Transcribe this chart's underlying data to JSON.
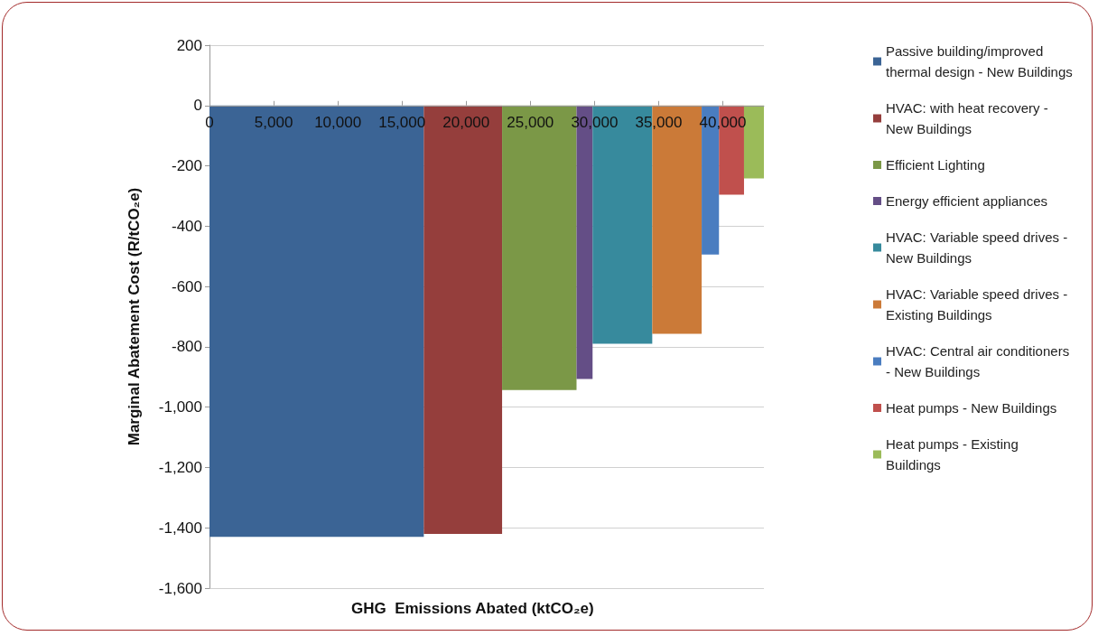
{
  "chart_data": {
    "type": "area",
    "xlabel": "GHG  Emissions Abated (ktCO₂e)",
    "ylabel": "Marginal Abatement Cost (R/tCO₂e)",
    "xlim": [
      0,
      43200
    ],
    "xticks": [
      0,
      {
        "value": 5000,
        "label": "5,000"
      },
      {
        "value": 10000,
        "label": "10,000"
      },
      {
        "value": 15000,
        "label": "15,000"
      },
      {
        "value": 20000,
        "label": "20,000"
      },
      {
        "value": 25000,
        "label": "25,000"
      },
      {
        "value": 30000,
        "label": "30,000"
      },
      {
        "value": 35000,
        "label": "35,000"
      },
      {
        "value": 40000,
        "label": "40,000"
      }
    ],
    "ylim": [
      -1600,
      200
    ],
    "yticks": [
      {
        "value": -1600,
        "label": "-1,600"
      },
      {
        "value": -1400,
        "label": "-1,400"
      },
      {
        "value": -1200,
        "label": "-1,200"
      },
      {
        "value": -1000,
        "label": "-1,000"
      },
      -800,
      -600,
      -400,
      -200,
      0,
      200
    ],
    "grid": "y",
    "legend": "right",
    "series": [
      {
        "name": "Passive building/improved thermal design - New Buildings",
        "color": "#3b6495",
        "x": [
          0,
          16700
        ],
        "values": [
          -1430,
          -1430
        ]
      },
      {
        "name": "HVAC: with heat recovery - New Buildings",
        "color": "#953e3c",
        "x": [
          16700,
          22800
        ],
        "values": [
          -1420,
          -1420
        ]
      },
      {
        "name": "Efficient Lighting",
        "color": "#7b9847",
        "x": [
          22800,
          28600
        ],
        "values": [
          -943,
          -943
        ]
      },
      {
        "name": "Energy efficient appliances",
        "color": "#644e86",
        "x": [
          28600,
          29850
        ],
        "values": [
          -907,
          -907
        ]
      },
      {
        "name": "HVAC: Variable speed drives - New Buildings",
        "color": "#378a9d",
        "x": [
          29850,
          34500
        ],
        "values": [
          -790,
          -790
        ]
      },
      {
        "name": "HVAC: Variable speed drives - Existing Buildings",
        "color": "#cb7a38",
        "x": [
          34500,
          38350
        ],
        "values": [
          -757,
          -757
        ]
      },
      {
        "name": "HVAC: Central air conditioners - New Buildings",
        "color": "#4a7dc0",
        "x": [
          38350,
          39700
        ],
        "values": [
          -494,
          -494
        ]
      },
      {
        "name": "Heat pumps - New Buildings",
        "color": "#c0504d",
        "x": [
          39700,
          41650
        ],
        "values": [
          -296,
          -296
        ]
      },
      {
        "name": "Heat pumps - Existing Buildings",
        "color": "#9bbb59",
        "x": [
          41650,
          43200
        ],
        "values": [
          -242,
          -242
        ]
      }
    ]
  }
}
